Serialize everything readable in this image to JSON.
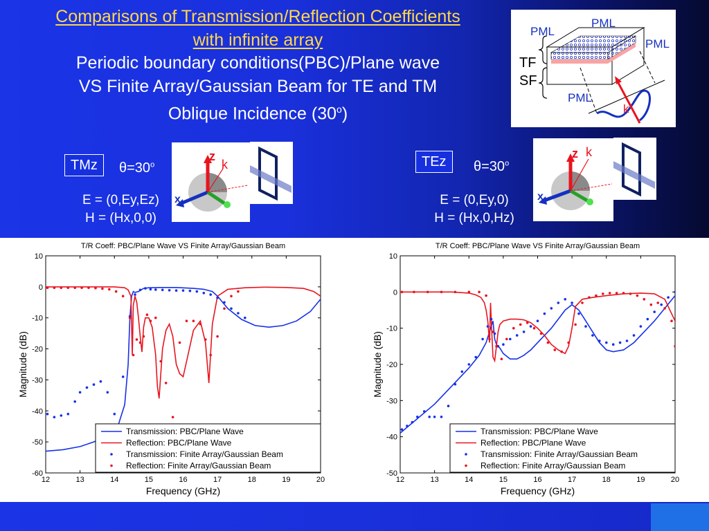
{
  "title": {
    "line1": "Comparisons of Transmission/Reflection Coefficients",
    "line2": "with infinite array",
    "line3": "Periodic boundary conditions(PBC)/Plane wave",
    "line4": "VS Finite Array/Gaussian Beam for TE and TM",
    "line5_main": "Oblique Incidence (30",
    "line5_sup": "o",
    "line5_end": ")"
  },
  "diagram": {
    "pml_top_left": "PML",
    "pml_top": "PML",
    "pml_right": "PML",
    "pml_bottom": "PML",
    "tf": "TF",
    "sf": "SF",
    "k": "k"
  },
  "left_panel": {
    "mode": "TMz",
    "theta_symbol": "θ",
    "theta_value": "=30",
    "theta_sup": "o",
    "e_field": "E = (0,Ey,Ez)",
    "h_field": "H = (Hx,0,0)",
    "axis_z": "z",
    "axis_x": "x",
    "axis_k": "k"
  },
  "right_panel": {
    "mode": "TEz",
    "theta_symbol": "θ",
    "theta_value": "=30",
    "theta_sup": "o",
    "e_field": "E = (0,Ey,0)",
    "h_field": "H = (Hx,0,Hz)",
    "axis_z": "z",
    "axis_x": "x",
    "axis_k": "k"
  },
  "colors": {
    "transmission": "#1530e8",
    "reflection": "#e8141e"
  },
  "chart_data": [
    {
      "type": "line",
      "title": "T/R Coeff: PBC/Plane Wave VS Finite Array/Gaussian Beam",
      "xlabel": "Frequency (GHz)",
      "ylabel": "Magnitude (dB)",
      "xlim": [
        12,
        20
      ],
      "ylim": [
        -60,
        10
      ],
      "xticks": [
        12,
        13,
        14,
        15,
        16,
        17,
        18,
        19,
        20
      ],
      "yticks": [
        10,
        0,
        -10,
        -20,
        -30,
        -40,
        -50,
        -60
      ],
      "grid": false,
      "legend_position": "bottom-right",
      "series": [
        {
          "name": "Transmission: PBC/Plane Wave",
          "style": "line",
          "color": "#1530e8",
          "x": [
            12,
            12.5,
            13,
            13.4,
            13.8,
            14.1,
            14.3,
            14.4,
            14.45,
            14.5,
            14.55,
            14.6,
            14.7,
            14.85,
            15,
            15.3,
            15.8,
            16.3,
            16.6,
            16.85,
            17,
            17.3,
            17.7,
            18.1,
            18.5,
            18.9,
            19.3,
            19.7,
            20
          ],
          "y": [
            -53,
            -52.5,
            -51.5,
            -50,
            -48,
            -45,
            -38,
            -25,
            -10,
            -3,
            -1.5,
            -1.8,
            -1.5,
            -0.5,
            -0.3,
            -0.2,
            -0.2,
            -0.5,
            -0.8,
            -1.5,
            -3,
            -7,
            -10.5,
            -12.5,
            -13,
            -12.5,
            -11,
            -8,
            -4
          ]
        },
        {
          "name": "Reflection: PBC/Plane Wave",
          "style": "line",
          "color": "#e8141e",
          "x": [
            12,
            12.5,
            13,
            13.5,
            14,
            14.3,
            14.4,
            14.48,
            14.52,
            14.55,
            14.6,
            14.65,
            14.7,
            14.75,
            14.8,
            14.85,
            14.9,
            15,
            15.1,
            15.2,
            15.25,
            15.3,
            15.4,
            15.5,
            15.6,
            15.7,
            15.8,
            15.9,
            16,
            16.1,
            16.3,
            16.5,
            16.65,
            16.75,
            16.85,
            17,
            17.3,
            17.8,
            18.4,
            19,
            19.5,
            19.8,
            20
          ],
          "y": [
            0,
            0,
            0,
            0,
            0,
            -0.3,
            -1,
            -3,
            -22,
            -6,
            -3,
            -5,
            -10,
            -16,
            -21,
            -13,
            -10,
            -10,
            -13,
            -22,
            -32,
            -36,
            -20,
            -14,
            -12,
            -16,
            -25,
            -28,
            -29,
            -24,
            -14,
            -11,
            -18,
            -31,
            -12,
            -3,
            -0.8,
            -0.3,
            -0.1,
            -0.2,
            -0.5,
            -1.5,
            -3
          ]
        },
        {
          "name": "Transmission: Finite Array/Gaussian Beam",
          "style": "markers",
          "color": "#1530e8",
          "x": [
            12.05,
            12.25,
            12.45,
            12.65,
            12.85,
            13.0,
            13.2,
            13.4,
            13.6,
            13.8,
            14.0,
            14.25,
            14.45,
            14.6,
            14.75,
            14.9,
            15.05,
            15.2,
            15.4,
            15.6,
            15.8,
            16.0,
            16.2,
            16.4,
            16.6,
            16.8,
            17.0,
            17.2,
            17.4,
            17.6,
            17.8
          ],
          "y": [
            -41,
            -42,
            -41.5,
            -41,
            -37,
            -34,
            -32.5,
            -31.5,
            -30.5,
            -34,
            -41,
            -29,
            -9.5,
            -2.5,
            -1,
            -0.5,
            -0.8,
            -0.9,
            -1,
            -1.1,
            -1.2,
            -1.2,
            -1.3,
            -1.5,
            -2,
            -2.5,
            -3.5,
            -5,
            -7,
            -8.5,
            -10
          ]
        },
        {
          "name": "Reflection: Finite Array/Gaussian Beam",
          "style": "markers",
          "color": "#e8141e",
          "x": [
            12.05,
            12.25,
            12.45,
            12.65,
            12.85,
            13.05,
            13.25,
            13.45,
            13.65,
            13.85,
            14.05,
            14.25,
            14.45,
            14.55,
            14.65,
            14.75,
            14.85,
            14.95,
            15.05,
            15.2,
            15.35,
            15.5,
            15.7,
            15.9,
            16.1,
            16.3,
            16.5,
            16.65,
            16.8,
            17.0,
            17.2,
            17.4,
            17.6
          ],
          "y": [
            -0.3,
            -0.3,
            -0.3,
            -0.3,
            -0.3,
            -0.3,
            -0.3,
            -0.4,
            -0.6,
            -0.8,
            -1.5,
            -3,
            -10,
            -22,
            -17,
            -18,
            -16,
            -9,
            -11,
            -10,
            -24,
            -31,
            -42,
            -18,
            -11,
            -11,
            -12,
            -17,
            -22,
            -16,
            -7,
            -3,
            -1.5
          ]
        }
      ]
    },
    {
      "type": "line",
      "title": "T/R Coeff: PBC/Plane Wave VS Finite Array/Gaussian Beam",
      "xlabel": "Frequency (GHz)",
      "ylabel": "Magnitude (dB)",
      "xlim": [
        12,
        20
      ],
      "ylim": [
        -50,
        10
      ],
      "xticks": [
        12,
        13,
        14,
        15,
        16,
        17,
        18,
        19,
        20
      ],
      "yticks": [
        10,
        0,
        -10,
        -20,
        -30,
        -40,
        -50
      ],
      "grid": false,
      "legend_position": "bottom-right",
      "series": [
        {
          "name": "Transmission: PBC/Plane Wave",
          "style": "line",
          "color": "#1530e8",
          "x": [
            12,
            12.5,
            13,
            13.5,
            14,
            14.3,
            14.5,
            14.6,
            14.7,
            14.75,
            14.8,
            14.9,
            15,
            15.2,
            15.4,
            15.6,
            15.8,
            16,
            16.2,
            16.4,
            16.6,
            16.8,
            17,
            17.2,
            17.4,
            17.6,
            17.8,
            18,
            18.2,
            18.5,
            18.8,
            19.1,
            19.4,
            19.7,
            20
          ],
          "y": [
            -39,
            -35,
            -31,
            -26,
            -21,
            -17.5,
            -14,
            -11,
            -8,
            -13,
            -14.5,
            -15.5,
            -17,
            -18.5,
            -18.5,
            -17.5,
            -16,
            -14,
            -12,
            -10,
            -7.5,
            -5,
            -3.5,
            -5,
            -8,
            -11,
            -14,
            -16,
            -16.5,
            -16,
            -14,
            -11,
            -8,
            -4.5,
            -1
          ]
        },
        {
          "name": "Reflection: PBC/Plane Wave",
          "style": "line",
          "color": "#e8141e",
          "x": [
            12,
            12.5,
            13,
            13.5,
            14,
            14.2,
            14.35,
            14.45,
            14.5,
            14.55,
            14.6,
            14.63,
            14.66,
            14.7,
            14.75,
            14.8,
            14.85,
            14.9,
            15,
            15.2,
            15.4,
            15.6,
            15.8,
            16,
            16.2,
            16.4,
            16.6,
            16.8,
            16.9,
            17,
            17.1,
            17.3,
            17.6,
            18,
            18.5,
            19,
            19.4,
            19.7,
            20
          ],
          "y": [
            0,
            0,
            0,
            0,
            -0.3,
            -0.8,
            -1.5,
            -3,
            -5,
            -8,
            -14,
            -3,
            -10,
            -18,
            -19,
            -15,
            -11,
            -9,
            -8,
            -7.5,
            -7.5,
            -7.7,
            -8.5,
            -10,
            -12,
            -14.5,
            -16,
            -17,
            -15,
            -10,
            -4,
            -2,
            -1.5,
            -1,
            -0.5,
            -0.3,
            -0.5,
            -2,
            -8
          ]
        },
        {
          "name": "Transmission: Finite Array/Gaussian Beam",
          "style": "markers",
          "color": "#1530e8",
          "x": [
            12.05,
            12.2,
            12.35,
            12.5,
            12.7,
            12.85,
            13.0,
            13.2,
            13.4,
            13.6,
            13.8,
            14.0,
            14.2,
            14.4,
            14.55,
            14.65,
            14.75,
            14.85,
            15.0,
            15.2,
            15.4,
            15.6,
            15.8,
            16.0,
            16.2,
            16.4,
            16.6,
            16.8,
            17.0,
            17.2,
            17.4,
            17.6,
            17.8,
            18.0,
            18.2,
            18.4,
            18.6,
            18.8,
            19.0,
            19.2,
            19.4,
            19.6,
            19.8,
            20.0
          ],
          "y": [
            -38,
            -37,
            -36,
            -34.5,
            -33,
            -34.5,
            -34.5,
            -34.5,
            -31.5,
            -25.5,
            -22,
            -20,
            -18,
            -13,
            -9.5,
            -7.5,
            -11.5,
            -15,
            -14.5,
            -13,
            -12,
            -11,
            -9.5,
            -8,
            -6,
            -4.5,
            -3,
            -2,
            -3,
            -6,
            -9.5,
            -12,
            -13.5,
            -14,
            -14.5,
            -14,
            -13.5,
            -12,
            -9.5,
            -7.5,
            -5.5,
            -3.5,
            -1.5,
            0
          ]
        },
        {
          "name": "Reflection: Finite Array/Gaussian Beam",
          "style": "markers",
          "color": "#e8141e",
          "x": [
            12.05,
            12.4,
            12.8,
            13.2,
            13.6,
            14.0,
            14.3,
            14.5,
            14.6,
            14.7,
            14.8,
            14.95,
            15.1,
            15.3,
            15.5,
            15.7,
            15.9,
            16.1,
            16.3,
            16.5,
            16.7,
            16.9,
            17.1,
            17.3,
            17.5,
            17.7,
            17.9,
            18.1,
            18.3,
            18.5,
            18.7,
            18.9,
            19.1,
            19.3,
            19.5,
            19.7,
            19.9,
            20.0
          ],
          "y": [
            0,
            0,
            0,
            0,
            0,
            0,
            0,
            -1,
            -13,
            -11,
            -15,
            -18.5,
            -13,
            -10,
            -9,
            -8.5,
            -10,
            -11.5,
            -14,
            -16,
            -16.5,
            -14,
            -9,
            -3,
            -1.5,
            -1,
            -0.5,
            -0.3,
            -0.3,
            -0.3,
            -0.5,
            -1,
            -2,
            -3.5,
            -3,
            -4.5,
            -8,
            -15
          ]
        }
      ]
    }
  ]
}
